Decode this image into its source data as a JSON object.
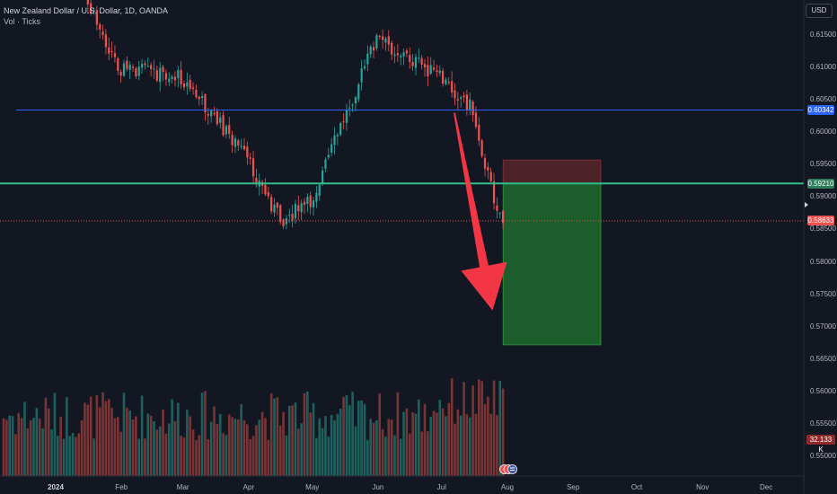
{
  "legend": {
    "title": "New Zealand Dollar / U.S. Dollar, 1D, OANDA",
    "volume": "Vol · Ticks"
  },
  "currency_button": "USD",
  "colors": {
    "background": "#131722",
    "up": "#26a69a",
    "down": "#ef5350",
    "blue_line": "#2962ff",
    "green_line": "#2fbf8a",
    "arrow": "#f23645",
    "target_zone": "#1b5e2b",
    "stop_zone": "#4d2229"
  },
  "chart_data": {
    "type": "candlestick",
    "symbol": "NZDUSD",
    "timeframe": "1D",
    "y_axis": {
      "ticks": [
        "0.61500",
        "0.61000",
        "0.60500",
        "0.60000",
        "0.59500",
        "0.59000",
        "0.58500",
        "0.58000",
        "0.57500",
        "0.57000",
        "0.56500",
        "0.56000",
        "0.55500",
        "0.55000"
      ],
      "ylim": [
        0.5485,
        0.618
      ]
    },
    "x_axis": {
      "ticks": [
        {
          "label": "2024",
          "bold": true
        },
        {
          "label": "Feb"
        },
        {
          "label": "Mar"
        },
        {
          "label": "Apr"
        },
        {
          "label": "May"
        },
        {
          "label": "Jun"
        },
        {
          "label": "Jul"
        },
        {
          "label": "Aug"
        },
        {
          "label": "Sep"
        },
        {
          "label": "Oct"
        },
        {
          "label": "Nov"
        },
        {
          "label": "Dec"
        }
      ]
    },
    "horizontal_lines": [
      {
        "name": "resistance",
        "value": 0.60342,
        "label": "0.60342",
        "color": "#2962ff"
      },
      {
        "name": "entry",
        "value": 0.5921,
        "label": "0.59210",
        "color": "#2fbf8a"
      },
      {
        "name": "last-price",
        "value": 0.58633,
        "label": "0.58633",
        "color": "#ef5350"
      }
    ],
    "short_position": {
      "entry": 0.5921,
      "stop": 0.5957,
      "target": 0.5672,
      "start_date": "2024-07-30",
      "end_date": "2024-09-14"
    },
    "arrow": {
      "from_date": "2024-07-07",
      "from_price": 0.603,
      "to_date": "2024-07-25",
      "to_price": 0.5725
    },
    "volume_label": "32.133 K",
    "candles": {
      "dates": [
        "2023-12-28",
        "2024-01-31",
        "2024-02-29",
        "2024-03-28",
        "2024-04-16",
        "2024-04-30",
        "2024-05-31",
        "2024-06-28",
        "2024-07-15",
        "2024-07-25",
        "2024-07-30"
      ],
      "close": [
        0.632,
        0.61,
        0.6085,
        0.5975,
        0.5865,
        0.589,
        0.6145,
        0.609,
        0.604,
        0.5905,
        0.5863
      ]
    }
  }
}
